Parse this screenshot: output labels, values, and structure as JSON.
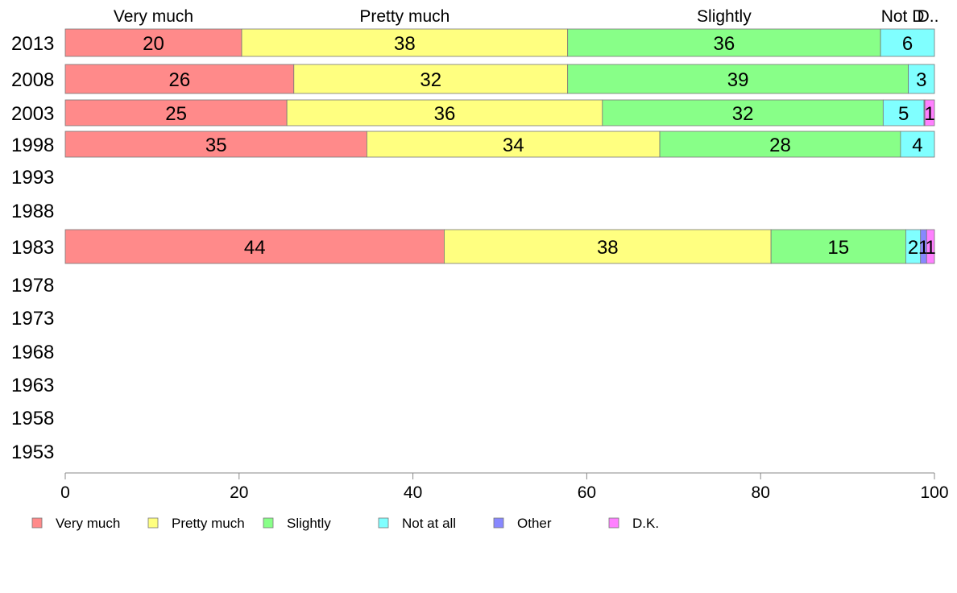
{
  "chart_data": {
    "type": "bar",
    "orientation": "horizontal",
    "stacked": true,
    "categories": [
      "2013",
      "2008",
      "2003",
      "1998",
      "1993",
      "1988",
      "1983",
      "1978",
      "1973",
      "1968",
      "1963",
      "1958",
      "1953"
    ],
    "series": [
      {
        "name": "Very much",
        "color": "#ff8a8a",
        "values": [
          20.3,
          26.3,
          25.5,
          34.7,
          null,
          null,
          43.6,
          null,
          null,
          null,
          null,
          null,
          null
        ]
      },
      {
        "name": "Pretty much",
        "color": "#ffff80",
        "values": [
          37.5,
          31.5,
          36.3,
          33.7,
          null,
          null,
          37.6,
          null,
          null,
          null,
          null,
          null,
          null
        ]
      },
      {
        "name": "Slightly",
        "color": "#88ff88",
        "values": [
          36.0,
          39.2,
          32.3,
          27.7,
          null,
          null,
          15.5,
          null,
          null,
          null,
          null,
          null,
          null
        ]
      },
      {
        "name": "Not at all",
        "color": "#80ffff",
        "values": [
          6.2,
          3.0,
          4.7,
          3.9,
          null,
          null,
          1.7,
          null,
          null,
          null,
          null,
          null,
          null
        ]
      },
      {
        "name": "Other",
        "color": "#8888ff",
        "values": [
          0,
          0,
          0.1,
          0,
          null,
          null,
          0.7,
          null,
          null,
          null,
          null,
          null,
          null
        ]
      },
      {
        "name": "D.K.",
        "color": "#ff80ff",
        "values": [
          0,
          0,
          1.1,
          0,
          null,
          null,
          0.9,
          null,
          null,
          null,
          null,
          null,
          null
        ]
      }
    ],
    "data_labels": {
      "2013": [
        "20",
        "38",
        "36",
        "6",
        "",
        ""
      ],
      "2008": [
        "26",
        "32",
        "39",
        "3",
        "",
        ""
      ],
      "2003": [
        "25",
        "36",
        "32",
        "5",
        "",
        "1"
      ],
      "1998": [
        "35",
        "34",
        "28",
        "4",
        "",
        ""
      ],
      "1983": [
        "44",
        "38",
        "15",
        "2",
        "1",
        "1"
      ]
    },
    "top_labels": [
      "Very much",
      "Pretty much",
      "Slightly",
      "Not at all",
      "D.K."
    ],
    "top_label_text": [
      "Very much",
      "Pretty much",
      "Slightly",
      "Not D",
      "D.."
    ],
    "xlim": [
      0,
      100
    ],
    "xticks": [
      "0",
      "20",
      "40",
      "60",
      "80",
      "100"
    ],
    "grid": false,
    "legend_position": "bottom",
    "title": "",
    "xlabel": "",
    "ylabel": ""
  }
}
